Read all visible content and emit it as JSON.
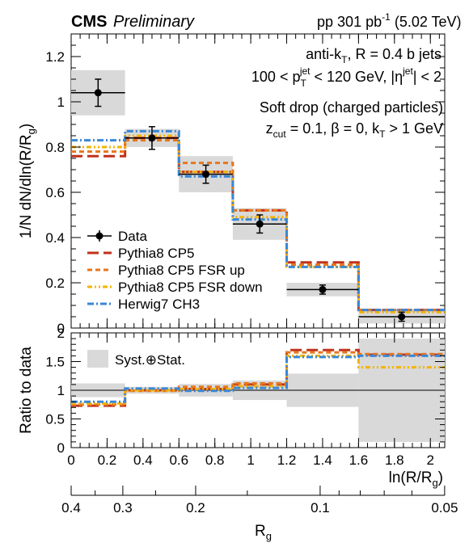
{
  "header": {
    "experiment": "CMS",
    "status": "Preliminary",
    "lumi_system": "pp",
    "lumi_value": "301",
    "lumi_unit": "pb",
    "lumi_exp": "-1",
    "energy": "(5.02 TeV)"
  },
  "annotations": {
    "line1": "anti-k",
    "line1_sub": "T",
    "line1_rest": ", R = 0.4 b jets",
    "line2_a": "100 < p",
    "line2_sub": "T",
    "line2_sup": "jet",
    "line2_b": " < 120 GeV, |η",
    "line2_sup2": "jet",
    "line2_c": "| < 2",
    "line3": "Soft drop (charged particles)",
    "line4_a": "z",
    "line4_sub": "cut",
    "line4_b": " = 0.1, β = 0, k",
    "line4_sub2": "T",
    "line4_c": " > 1 GeV"
  },
  "chart_data": [
    {
      "type": "step",
      "ylabel": "1/N dN/dln(R/R_g)",
      "ylim": [
        0,
        1.3
      ],
      "xlim": [
        0,
        2.08
      ],
      "bin_edges": [
        0,
        0.3,
        0.6,
        0.9,
        1.2,
        1.6,
        2.08
      ],
      "yticks": [
        "0",
        "0.2",
        "0.4",
        "0.6",
        "0.8",
        "1",
        "1.2"
      ],
      "data": {
        "name": "Data",
        "x": [
          0.15,
          0.45,
          0.75,
          1.05,
          1.4,
          1.84
        ],
        "y": [
          1.04,
          0.84,
          0.68,
          0.46,
          0.17,
          0.05
        ],
        "stat_err": [
          0.06,
          0.05,
          0.04,
          0.04,
          0.02,
          0.02
        ],
        "syst_err": [
          0.1,
          0.04,
          0.08,
          0.07,
          0.03,
          0.03
        ]
      },
      "series": [
        {
          "name": "Pythia8 CP5",
          "color": "#c0321a",
          "values": [
            0.76,
            0.84,
            0.69,
            0.52,
            0.29,
            0.08
          ]
        },
        {
          "name": "Pythia8 CP5 FSR up",
          "color": "#e8761b",
          "values": [
            0.78,
            0.83,
            0.73,
            0.52,
            0.28,
            0.08
          ]
        },
        {
          "name": "Pythia8 CP5 FSR down",
          "color": "#f5b301",
          "values": [
            0.8,
            0.85,
            0.69,
            0.49,
            0.27,
            0.07
          ]
        },
        {
          "name": "Herwig7 CH3",
          "color": "#3a87d6",
          "values": [
            0.83,
            0.87,
            0.67,
            0.48,
            0.27,
            0.08
          ]
        }
      ]
    },
    {
      "type": "step",
      "ylabel": "Ratio to data",
      "ylim": [
        0,
        2
      ],
      "yticks": [
        "0",
        "0.5",
        "1",
        "1.5",
        "2"
      ],
      "xticks": [
        "0",
        "0.2",
        "0.4",
        "0.6",
        "0.8",
        "1",
        "1.2",
        "1.4",
        "1.6",
        "1.8",
        "2"
      ],
      "xlabel": "ln(R/R_g)",
      "band_label": "Syst.⊕Stat.",
      "band_halfwidth": [
        0.12,
        0.06,
        0.11,
        0.17,
        0.29,
        0.9
      ],
      "series": [
        {
          "name": "Pythia8 CP5",
          "values": [
            0.73,
            1.0,
            1.02,
            1.1,
            1.7,
            1.62
          ]
        },
        {
          "name": "Pythia8 CP5 FSR up",
          "values": [
            0.75,
            0.99,
            1.06,
            1.12,
            1.66,
            1.63
          ]
        },
        {
          "name": "Pythia8 CP5 FSR down",
          "values": [
            0.77,
            1.0,
            1.02,
            1.07,
            1.6,
            1.4
          ]
        },
        {
          "name": "Herwig7 CH3",
          "values": [
            0.8,
            1.03,
            0.99,
            1.04,
            1.58,
            1.6
          ]
        }
      ]
    },
    {
      "type": "axis",
      "xlabel": "R_g",
      "tick_labels": [
        "0.4",
        "0.3",
        "0.2",
        "0.1",
        "0.05"
      ],
      "tick_values": [
        0.4,
        0.3,
        0.2,
        0.1,
        0.05
      ]
    }
  ]
}
